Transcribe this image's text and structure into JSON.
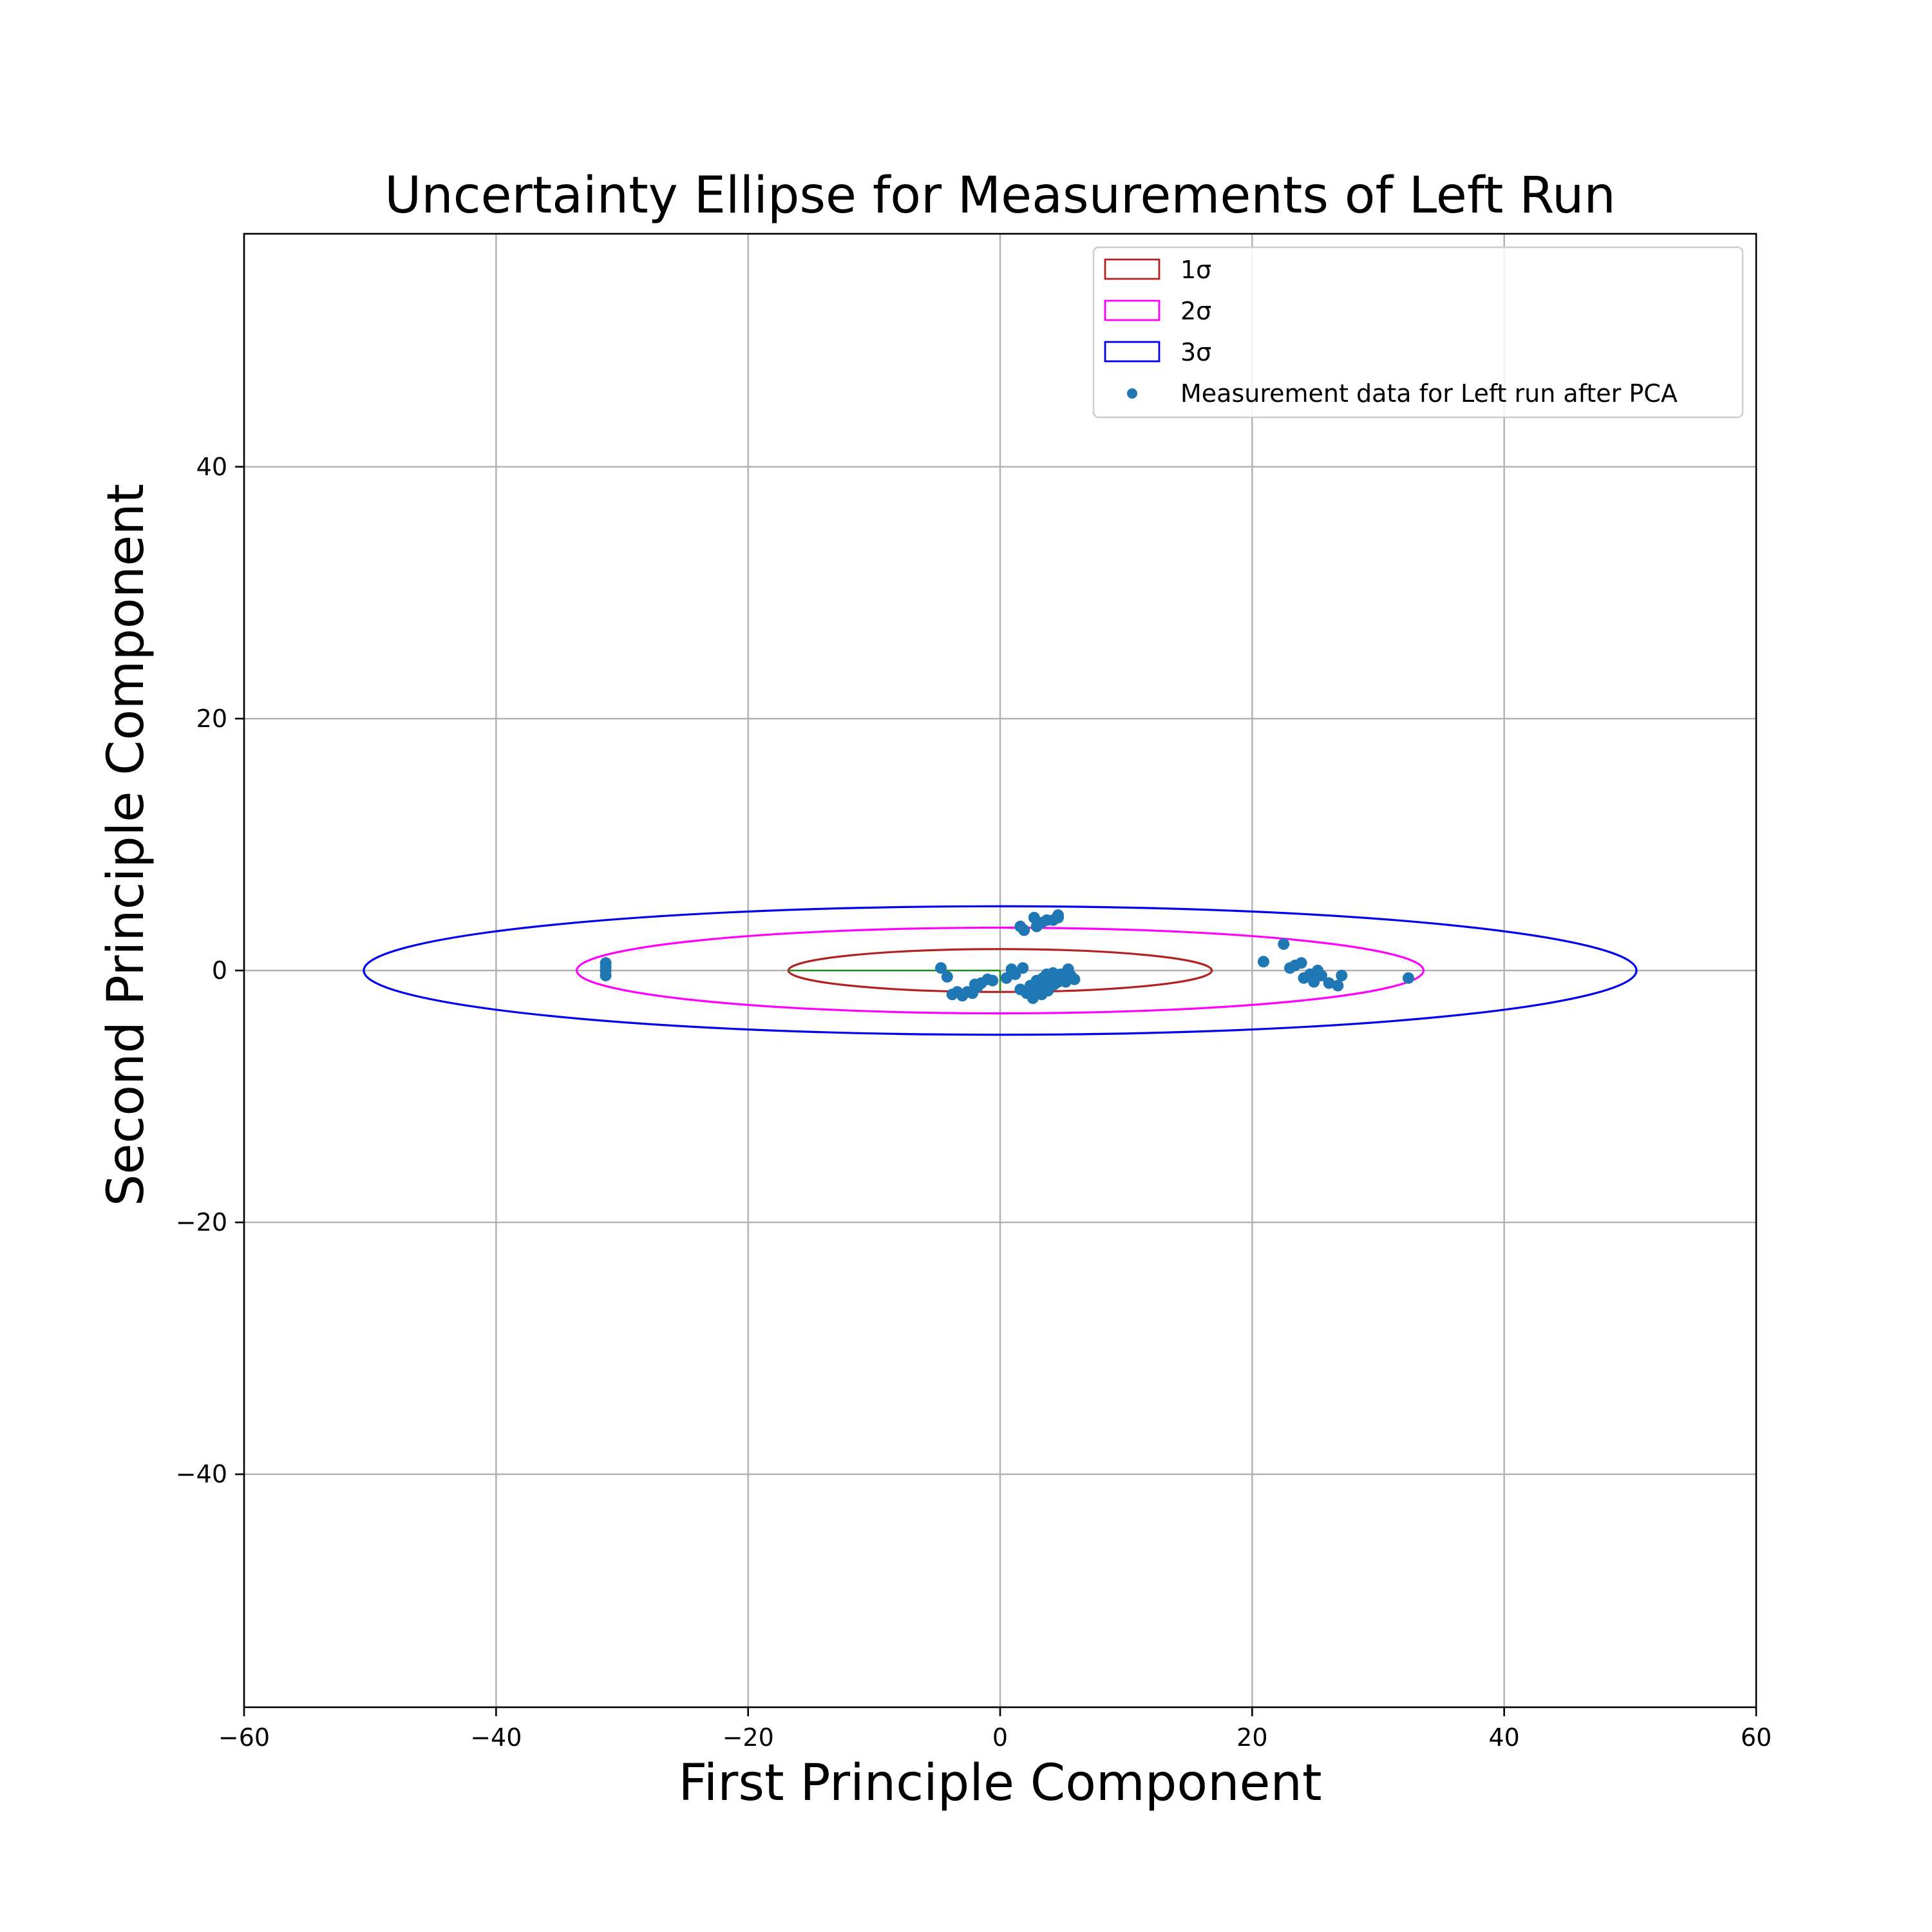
{
  "chart_data": {
    "type": "scatter",
    "title": "Uncertainty Ellipse for Measurements of Left Run",
    "xlabel": "First Principle Component",
    "ylabel": "Second Principle Component",
    "xlim": [
      -60,
      60
    ],
    "ylim": [
      -58.5,
      58.5
    ],
    "xticks": [
      {
        "value": -60,
        "label": "−60"
      },
      {
        "value": -40,
        "label": "−40"
      },
      {
        "value": -20,
        "label": "−20"
      },
      {
        "value": 0,
        "label": "0"
      },
      {
        "value": 20,
        "label": "20"
      },
      {
        "value": 40,
        "label": "40"
      },
      {
        "value": 60,
        "label": "60"
      }
    ],
    "yticks": [
      {
        "value": -40,
        "label": "−40"
      },
      {
        "value": -20,
        "label": "−20"
      },
      {
        "value": 0,
        "label": "0"
      },
      {
        "value": 20,
        "label": "20"
      },
      {
        "value": 40,
        "label": "40"
      }
    ],
    "grid": true,
    "legend_position": "top-right",
    "ellipses": [
      {
        "name": "1σ",
        "rx": 16.8,
        "ry": 1.7,
        "color": "#b22222"
      },
      {
        "name": "2σ",
        "rx": 33.6,
        "ry": 3.4,
        "color": "#ff00ff"
      },
      {
        "name": "3σ",
        "rx": 50.5,
        "ry": 5.1,
        "color": "#0000ee"
      }
    ],
    "axis_segments": {
      "major": {
        "x1": -16.8,
        "y1": 0,
        "x2": 0,
        "y2": 0,
        "color": "#228b22"
      },
      "minor": {
        "x1": 0,
        "y1": -1.7,
        "x2": 0,
        "y2": 0,
        "color": "#228b22"
      }
    },
    "scatter_series": {
      "name": "Measurement data for Left run after PCA",
      "color": "#1f77b4",
      "points": [
        [
          -31.3,
          0.6
        ],
        [
          -31.3,
          0.3
        ],
        [
          -31.3,
          0.0
        ],
        [
          -31.3,
          -0.4
        ],
        [
          -4.7,
          0.2
        ],
        [
          -4.2,
          -0.5
        ],
        [
          -3.8,
          -1.9
        ],
        [
          -3.4,
          -1.7
        ],
        [
          -3.0,
          -2.0
        ],
        [
          -2.6,
          -1.7
        ],
        [
          -2.2,
          -1.8
        ],
        [
          -2.0,
          -1.1
        ],
        [
          -1.8,
          -1.3
        ],
        [
          -1.5,
          -1.0
        ],
        [
          -1.0,
          -0.7
        ],
        [
          -0.6,
          -0.8
        ],
        [
          0.5,
          -0.6
        ],
        [
          0.9,
          0.1
        ],
        [
          1.2,
          -0.3
        ],
        [
          1.6,
          -1.5
        ],
        [
          1.8,
          0.2
        ],
        [
          2.1,
          -1.8
        ],
        [
          2.4,
          -1.2
        ],
        [
          2.6,
          -2.2
        ],
        [
          2.8,
          -1.0
        ],
        [
          3.0,
          -1.7
        ],
        [
          3.2,
          -1.3
        ],
        [
          3.4,
          -0.6
        ],
        [
          3.6,
          -1.0
        ],
        [
          3.8,
          -1.6
        ],
        [
          4.0,
          -0.8
        ],
        [
          4.2,
          -0.2
        ],
        [
          4.4,
          -0.5
        ],
        [
          4.6,
          -0.9
        ],
        [
          4.8,
          -0.3
        ],
        [
          5.0,
          -0.6
        ],
        [
          5.2,
          -0.9
        ],
        [
          5.4,
          0.1
        ],
        [
          5.6,
          -0.4
        ],
        [
          5.9,
          -0.7
        ],
        [
          3.7,
          -0.3
        ],
        [
          4.3,
          -1.1
        ],
        [
          2.9,
          -0.8
        ],
        [
          3.3,
          -1.9
        ],
        [
          1.6,
          3.5
        ],
        [
          1.9,
          3.2
        ],
        [
          2.7,
          4.2
        ],
        [
          2.9,
          3.5
        ],
        [
          3.3,
          3.8
        ],
        [
          3.7,
          4.0
        ],
        [
          4.2,
          4.0
        ],
        [
          4.6,
          4.2
        ],
        [
          4.6,
          4.4
        ],
        [
          20.9,
          0.7
        ],
        [
          22.5,
          2.1
        ],
        [
          23.0,
          0.2
        ],
        [
          23.4,
          0.4
        ],
        [
          23.9,
          0.6
        ],
        [
          24.1,
          -0.6
        ],
        [
          24.6,
          -0.3
        ],
        [
          24.9,
          -0.9
        ],
        [
          25.2,
          0.0
        ],
        [
          25.5,
          -0.4
        ],
        [
          26.1,
          -1.0
        ],
        [
          26.8,
          -1.2
        ],
        [
          27.1,
          -0.4
        ],
        [
          32.4,
          -0.6
        ]
      ]
    }
  }
}
